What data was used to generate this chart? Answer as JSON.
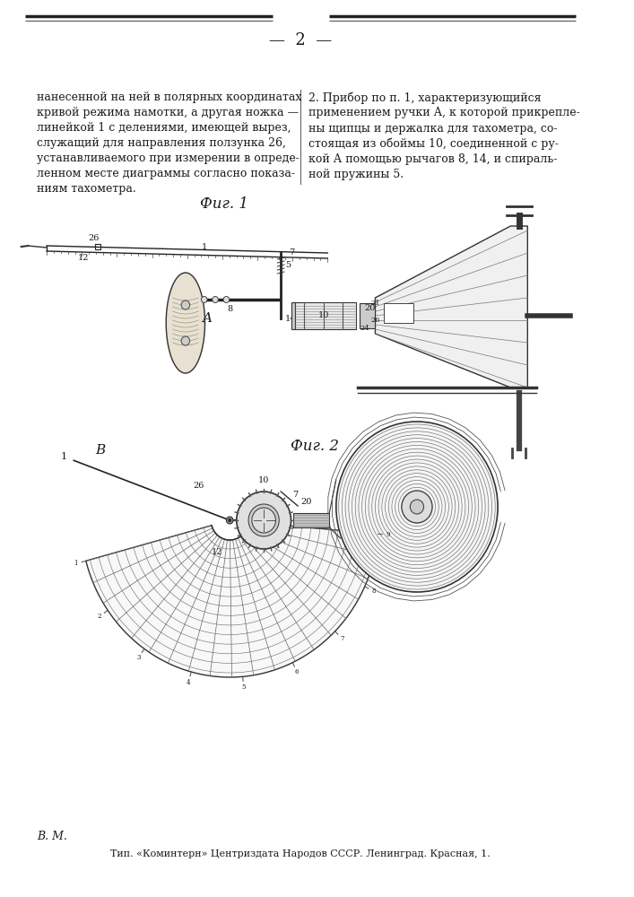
{
  "page_number": "2",
  "background_color": "#ffffff",
  "text_color": "#1a1a1a",
  "top_line_color": "#000000",
  "left_column_text": "нанесенной на ней в полярных координатах\nкривой режима намотки, а другая ножка —\nлинейкой 1 с делениями, имеющей вырез,\nслужащий для направления ползунка 26,\nустанавливаемого при измерении в опреде-\nленном месте диаграммы согласно показа-\nниям тахометра.",
  "right_column_text": "2. Прибор по п. 1, характеризующийся\nприменением ручки А, к которой прикрепле-\nны щипцы и держалка для тахометра, со-\nстоящая из обоймы 10, соединенной с ру-\nкой А помощью рычагов 8, 14, и спираль-\nной пружины 5.",
  "fig1_label": "Фиг. 1",
  "fig2_label": "Фиг. 2",
  "bottom_left_text": "В. М.",
  "bottom_center_text": "Тип. «Коминтерн» Центриздата Народов СССР. Ленинград. Красная, 1.",
  "font_size_body": 9,
  "font_size_fig": 12,
  "font_size_page": 13,
  "font_size_bottom": 8
}
